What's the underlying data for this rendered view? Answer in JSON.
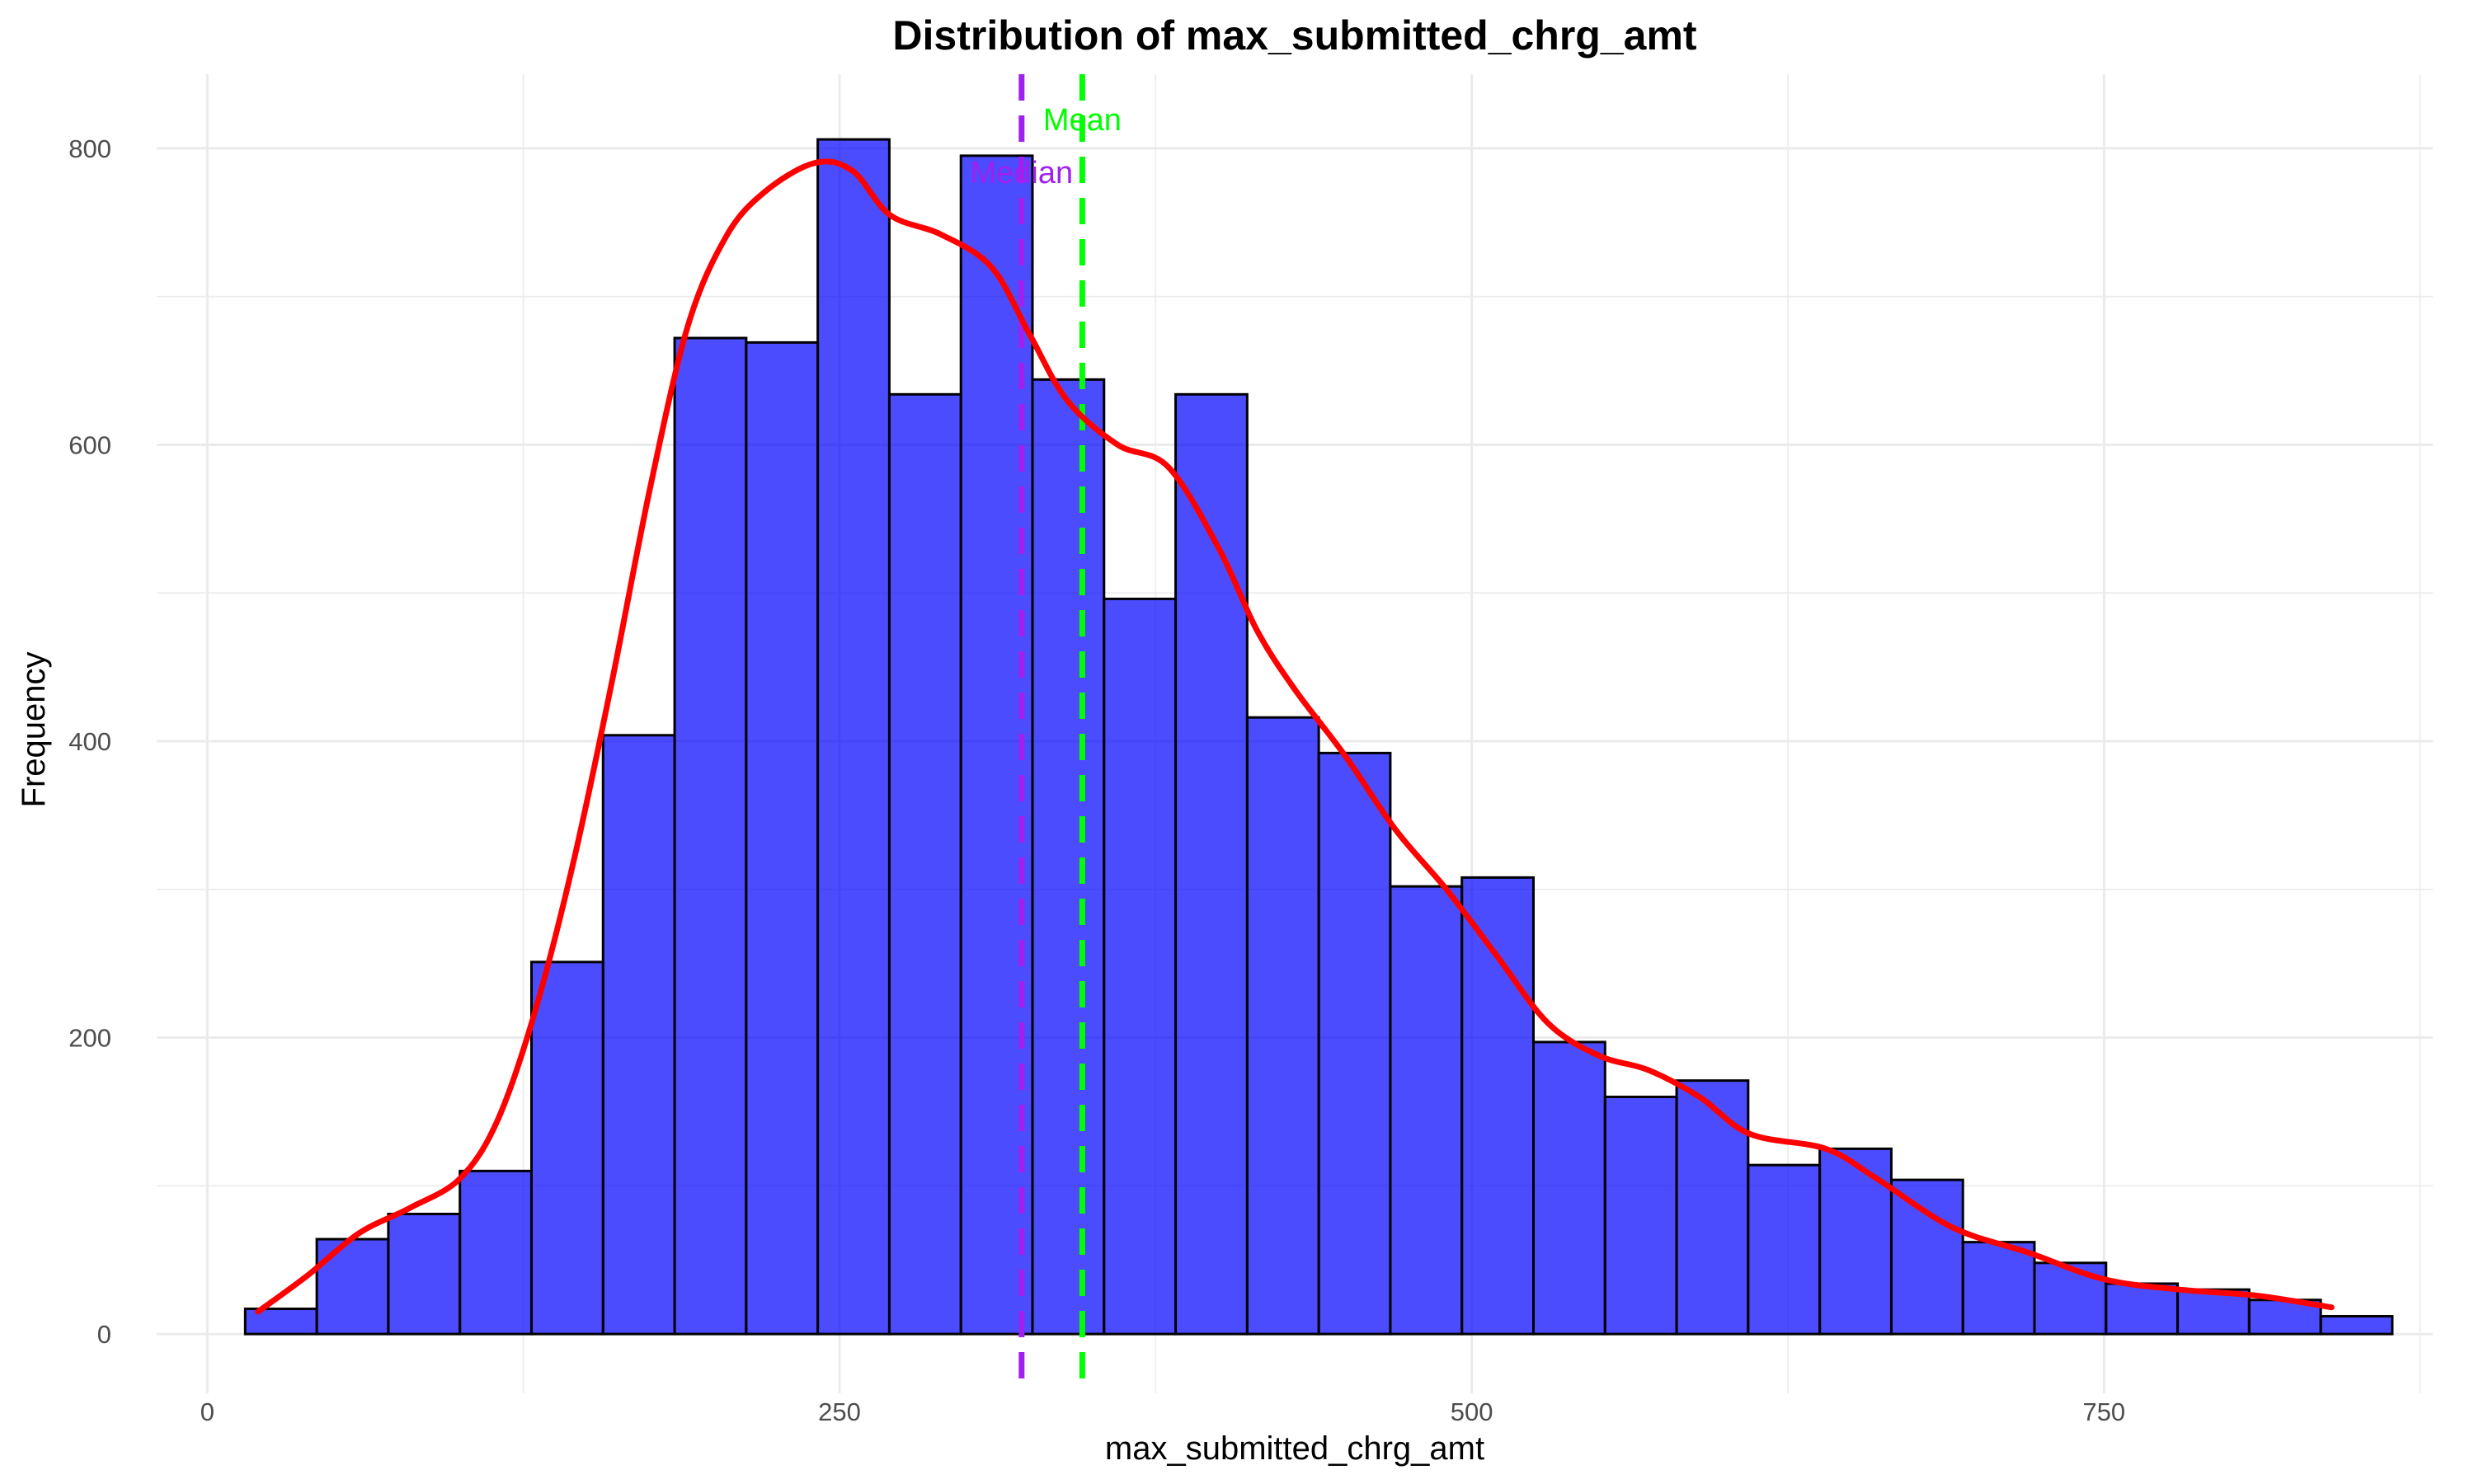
{
  "chart_data": {
    "type": "bar",
    "title": "Distribution of max_submitted_chrg_amt",
    "xlabel": "max_submitted_chrg_amt",
    "ylabel": "Frequency",
    "xlim": [
      -20,
      880
    ],
    "ylim": [
      -40,
      850
    ],
    "x_ticks": [
      0,
      250,
      500,
      750
    ],
    "y_ticks": [
      0,
      200,
      400,
      600,
      800
    ],
    "grid": true,
    "bin_width": 28.3,
    "bins": [
      {
        "x0": 15.0,
        "x1": 43.3,
        "count": 17
      },
      {
        "x0": 43.3,
        "x1": 71.6,
        "count": 64
      },
      {
        "x0": 71.6,
        "x1": 99.9,
        "count": 81
      },
      {
        "x0": 99.9,
        "x1": 128.2,
        "count": 110
      },
      {
        "x0": 128.2,
        "x1": 156.5,
        "count": 251
      },
      {
        "x0": 156.5,
        "x1": 184.8,
        "count": 404
      },
      {
        "x0": 184.8,
        "x1": 213.1,
        "count": 672
      },
      {
        "x0": 213.1,
        "x1": 241.4,
        "count": 669
      },
      {
        "x0": 241.4,
        "x1": 269.7,
        "count": 806
      },
      {
        "x0": 269.7,
        "x1": 298.0,
        "count": 634
      },
      {
        "x0": 298.0,
        "x1": 326.3,
        "count": 795
      },
      {
        "x0": 326.3,
        "x1": 354.6,
        "count": 644
      },
      {
        "x0": 354.6,
        "x1": 382.9,
        "count": 496
      },
      {
        "x0": 382.9,
        "x1": 411.2,
        "count": 634
      },
      {
        "x0": 411.2,
        "x1": 439.5,
        "count": 416
      },
      {
        "x0": 439.5,
        "x1": 467.8,
        "count": 392
      },
      {
        "x0": 467.8,
        "x1": 496.1,
        "count": 302
      },
      {
        "x0": 496.1,
        "x1": 524.4,
        "count": 308
      },
      {
        "x0": 524.4,
        "x1": 552.7,
        "count": 197
      },
      {
        "x0": 552.7,
        "x1": 581.0,
        "count": 160
      },
      {
        "x0": 581.0,
        "x1": 609.3,
        "count": 171
      },
      {
        "x0": 609.3,
        "x1": 637.6,
        "count": 114
      },
      {
        "x0": 637.6,
        "x1": 665.9,
        "count": 125
      },
      {
        "x0": 665.9,
        "x1": 694.2,
        "count": 104
      },
      {
        "x0": 694.2,
        "x1": 722.5,
        "count": 62
      },
      {
        "x0": 722.5,
        "x1": 750.8,
        "count": 48
      },
      {
        "x0": 750.8,
        "x1": 779.1,
        "count": 34
      },
      {
        "x0": 779.1,
        "x1": 807.4,
        "count": 30
      },
      {
        "x0": 807.4,
        "x1": 835.7,
        "count": 23
      },
      {
        "x0": 835.7,
        "x1": 864.0,
        "count": 12
      }
    ],
    "density_curve": {
      "x": [
        20,
        40,
        60,
        80,
        100,
        115,
        130,
        145,
        160,
        175,
        190,
        205,
        220,
        240,
        255,
        270,
        290,
        310,
        325,
        340,
        360,
        380,
        400,
        415,
        430,
        450,
        470,
        490,
        510,
        530,
        550,
        570,
        590,
        610,
        640,
        660,
        690,
        720,
        750,
        780,
        810,
        840
      ],
      "y": [
        15,
        40,
        68,
        85,
        105,
        145,
        220,
        320,
        440,
        570,
        680,
        740,
        770,
        790,
        785,
        755,
        742,
        720,
        675,
        630,
        600,
        585,
        530,
        475,
        435,
        390,
        340,
        300,
        255,
        210,
        188,
        178,
        160,
        135,
        125,
        105,
        72,
        55,
        37,
        30,
        26,
        18
      ]
    },
    "reference_lines": [
      {
        "name": "Median",
        "value": 322,
        "color": "#a020f0"
      },
      {
        "name": "Mean",
        "value": 346,
        "color": "#00ff00"
      }
    ],
    "colors": {
      "bar_fill": "#0000ff",
      "bar_stroke": "#000000",
      "density": "#ff0000",
      "grid": "#ebebeb"
    }
  }
}
